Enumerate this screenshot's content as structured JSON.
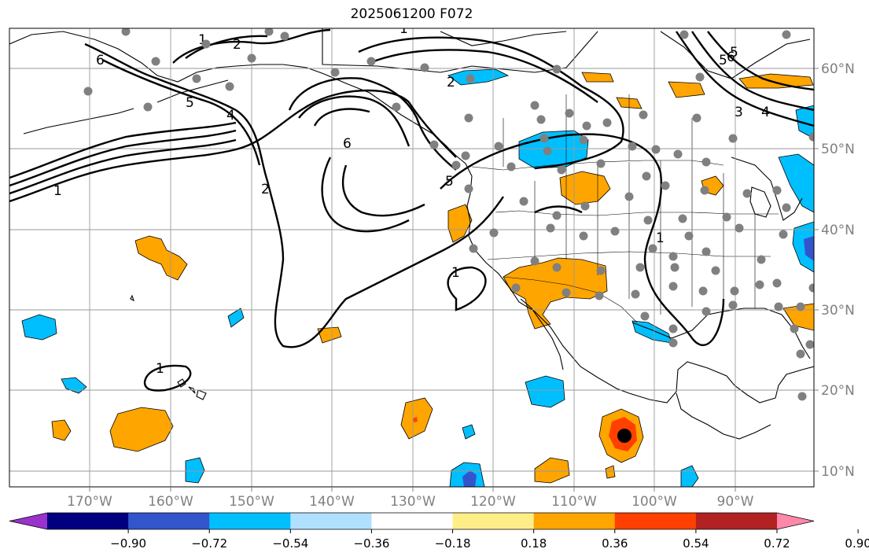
{
  "title": "2025061200 F072",
  "lon_labels": [
    "170°W",
    "160°W",
    "150°W",
    "140°W",
    "130°W",
    "120°W",
    "110°W",
    "100°W",
    "90°W"
  ],
  "lat_labels": [
    "60°N",
    "50°N",
    "40°N",
    "30°N",
    "20°N",
    "10°N"
  ],
  "colorbar": {
    "colors": [
      "#9933cc",
      "#000080",
      "#3355cc",
      "#00bfff",
      "#b0e0ff",
      "#ffffff",
      "#ffee88",
      "#ffa500",
      "#ff4000",
      "#b22222",
      "#ff88aa"
    ],
    "tick_labels": [
      "−0.90",
      "−0.72",
      "−0.54",
      "−0.36",
      "−0.18",
      "0.18",
      "0.36",
      "0.54",
      "0.72",
      "0.90"
    ]
  },
  "contour_labels": [
    "1",
    "2",
    "6",
    "5",
    "4",
    "1",
    "6",
    "5",
    "2",
    "1",
    "5",
    "6",
    "2",
    "1",
    "1",
    "4",
    "3",
    "5",
    "1"
  ],
  "colors": {
    "positive_1": "#ffa500",
    "positive_2": "#ff4000",
    "negative_1": "#00bfff",
    "negative_2": "#3355cc",
    "marker": "#808080"
  }
}
